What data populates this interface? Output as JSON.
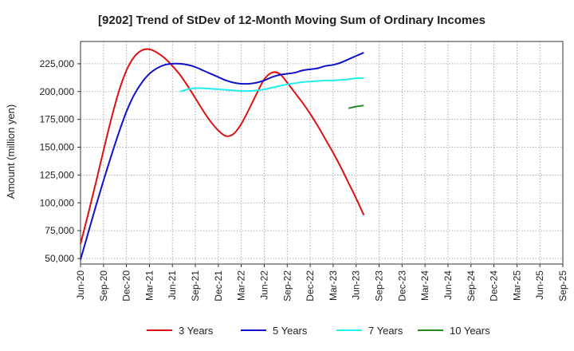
{
  "chart_data": {
    "type": "line",
    "title": "[9202]  Trend of StDev of 12-Month Moving Sum of Ordinary Incomes",
    "ylabel": "Amount (million yen)",
    "xlabel": "",
    "ylim": [
      45000,
      245000
    ],
    "y_ticks": [
      50000,
      75000,
      100000,
      125000,
      150000,
      175000,
      200000,
      225000
    ],
    "y_tick_labels": [
      "50,000",
      "75,000",
      "100,000",
      "125,000",
      "150,000",
      "175,000",
      "200,000",
      "225,000"
    ],
    "x_tick_labels": [
      "Jun-20",
      "Sep-20",
      "Dec-20",
      "Mar-21",
      "Jun-21",
      "Sep-21",
      "Dec-21",
      "Mar-22",
      "Jun-22",
      "Sep-22",
      "Dec-22",
      "Mar-23",
      "Jun-23",
      "Sep-23",
      "Dec-23",
      "Mar-24",
      "Jun-24",
      "Sep-24",
      "Dec-24",
      "Mar-25",
      "Jun-25",
      "Sep-25"
    ],
    "grid": true,
    "legend_position": "bottom",
    "series": [
      {
        "name": "3 Years",
        "color": "#dd1111",
        "start_index": 0,
        "values": [
          63000,
          90000,
          118000,
          147000,
          175000,
          200000,
          219000,
          231000,
          237000,
          238000,
          235000,
          230000,
          223000,
          215000,
          205000,
          194000,
          183000,
          173000,
          165000,
          160000,
          162000,
          171000,
          184000,
          198000,
          211000,
          217000,
          216000,
          208000,
          199000,
          190000,
          180000,
          169000,
          157000,
          145000,
          132000,
          118000,
          104000,
          89000
        ]
      },
      {
        "name": "5 Years",
        "color": "#1111cc",
        "start_index": 0,
        "values": [
          49000,
          73000,
          97000,
          120000,
          142000,
          163000,
          182000,
          197000,
          208000,
          216000,
          221000,
          224000,
          225000,
          225000,
          224000,
          222000,
          219000,
          216000,
          213000,
          210000,
          208000,
          207000,
          207000,
          208000,
          210000,
          213000,
          215000,
          216000,
          217000,
          219000,
          220000,
          221000,
          223000,
          224000,
          226000,
          229000,
          232000,
          235000
        ]
      },
      {
        "name": "7 Years",
        "color": "#22eeee",
        "start_index": 13,
        "values": [
          200000,
          202000,
          203000,
          203000,
          202500,
          202000,
          201500,
          201000,
          200500,
          200500,
          201000,
          202000,
          203500,
          205000,
          206500,
          207500,
          208500,
          209000,
          209500,
          210000,
          210000,
          210500,
          211000,
          212000,
          212000
        ]
      },
      {
        "name": "10 Years",
        "color": "#228822",
        "start_index": 35,
        "values": [
          185000,
          186500,
          187500
        ]
      }
    ]
  }
}
